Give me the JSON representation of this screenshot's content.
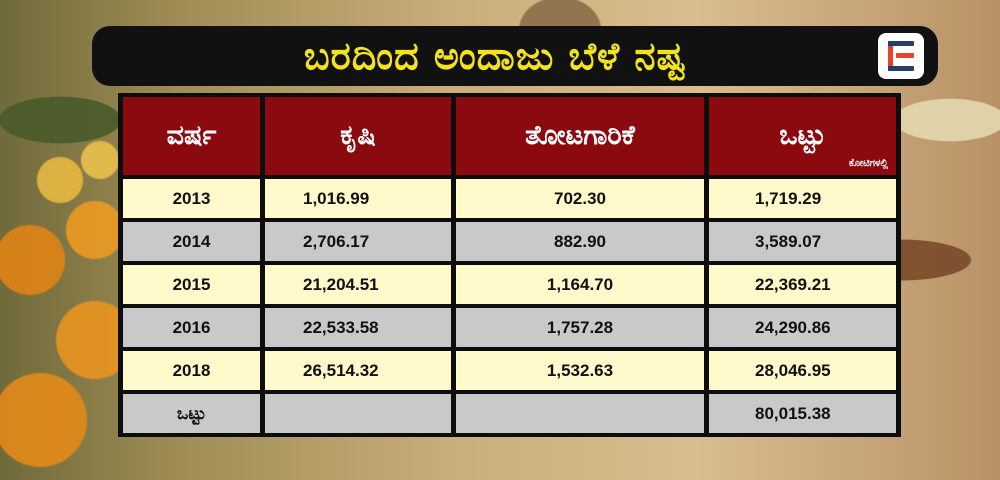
{
  "title": "ಬರದಿಂದ ಅಂದಾಜು ಬೆಳೆ ನಷ್ಟ",
  "logo": {
    "icon": "e-brand-logo"
  },
  "table": {
    "headers": {
      "year": "ವರ್ಷ",
      "agriculture": "ಕೃಷಿ",
      "horticulture": "ತೋಟಗಾರಿಕೆ",
      "total": "ಒಟ್ಟು",
      "unit": "ಕೋಟಿಗಳಲ್ಲಿ"
    },
    "rows": [
      {
        "year": "2013",
        "agriculture": "1,016.99",
        "horticulture": "702.30",
        "total": "1,719.29"
      },
      {
        "year": "2014",
        "agriculture": "2,706.17",
        "horticulture": "882.90",
        "total": "3,589.07"
      },
      {
        "year": "2015",
        "agriculture": "21,204.51",
        "horticulture": "1,164.70",
        "total": "22,369.21"
      },
      {
        "year": "2016",
        "agriculture": "22,533.58",
        "horticulture": "1,757.28",
        "total": "24,290.86"
      },
      {
        "year": "2018",
        "agriculture": "26,514.32",
        "horticulture": "1,532.63",
        "total": "28,046.95"
      }
    ],
    "footer": {
      "label": "ಒಟ್ಟು",
      "agriculture": "",
      "horticulture": "",
      "total": "80,015.38"
    }
  }
}
